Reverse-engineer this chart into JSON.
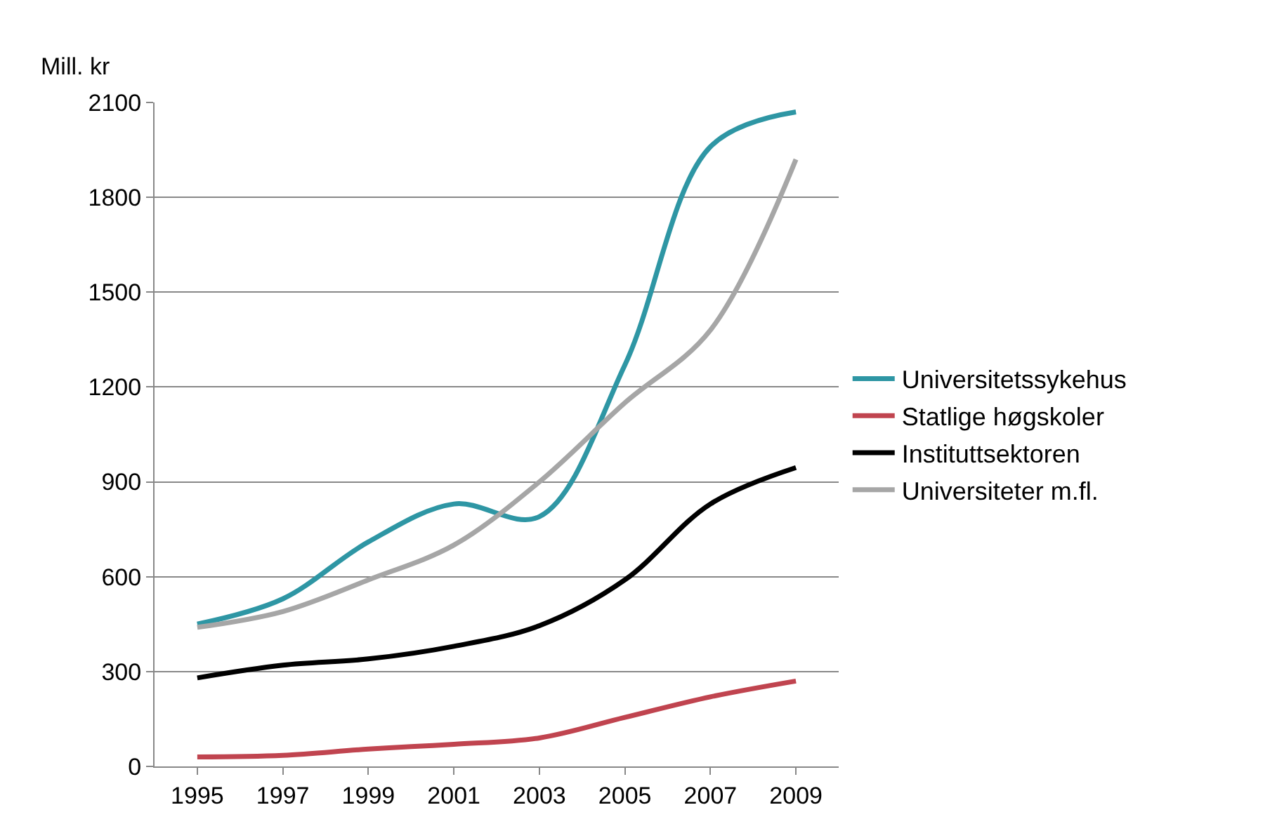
{
  "chart_data": {
    "type": "line",
    "ylabel": "Mill. kr",
    "categories": [
      "1995",
      "1997",
      "1999",
      "2001",
      "2003",
      "2005",
      "2007",
      "2009"
    ],
    "series": [
      {
        "name": "Universitetssykehus",
        "color": "#2e96a4",
        "values": [
          450,
          530,
          710,
          830,
          790,
          1270,
          1960,
          2070
        ]
      },
      {
        "name": "Statlige høgskoler",
        "color": "#c0444f",
        "values": [
          30,
          35,
          55,
          70,
          90,
          155,
          220,
          270
        ]
      },
      {
        "name": "Instituttsektoren",
        "color": "#000000",
        "values": [
          280,
          320,
          340,
          380,
          445,
          590,
          830,
          945
        ]
      },
      {
        "name": "Universiteter m.fl.",
        "color": "#a6a6a6",
        "values": [
          440,
          490,
          590,
          700,
          900,
          1150,
          1380,
          1920
        ]
      }
    ],
    "ylim": [
      0,
      2100
    ],
    "yticks": [
      0,
      300,
      600,
      900,
      1200,
      1500,
      1800,
      2100
    ],
    "grid": "y",
    "legend": "right",
    "marker": "none",
    "line_style": "solid"
  }
}
